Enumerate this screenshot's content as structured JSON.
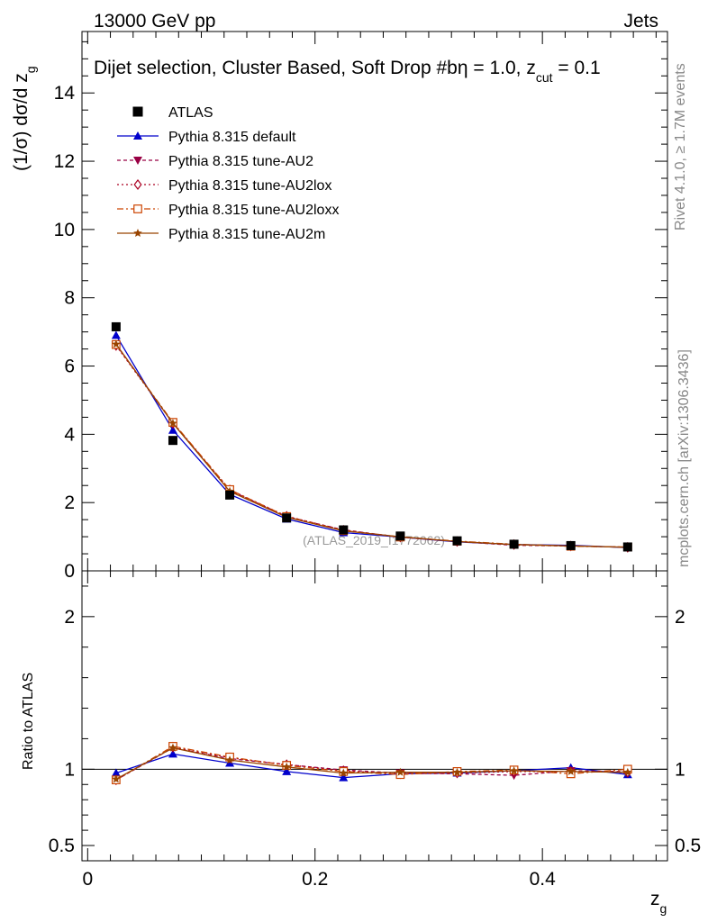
{
  "header": {
    "energy_label": "13000 GeV pp",
    "category_label": "Jets"
  },
  "side_text": {
    "rivet": "Rivet 4.1.0, ≥ 1.7M events",
    "mcplots": "mcplots.cern.ch [arXiv:1306.3436]"
  },
  "chart_data": {
    "type": "line",
    "title": "Dijet selection, Cluster Based, Soft Drop #b",
    "title_eta": "η = 1.0, z",
    "title_cut": "cut",
    "title_end": " = 0.1",
    "watermark": "(ATLAS_2019_I1772062)",
    "xlabel": "z",
    "xlabel_sub": "g",
    "ylabel": "(1/σ) dσ/d z",
    "ylabel_sub": "g",
    "ratio_ylabel": "Ratio to ATLAS",
    "xlim": [
      -0.005,
      0.51
    ],
    "ylim": [
      0,
      15.8
    ],
    "ratio_ylim": [
      0.4,
      2.3
    ],
    "x": [
      0.025,
      0.075,
      0.125,
      0.175,
      0.225,
      0.275,
      0.325,
      0.375,
      0.425,
      0.475
    ],
    "x_ticks": [
      {
        "v": 0,
        "label": "0"
      },
      {
        "v": 0.2,
        "label": "0.2"
      },
      {
        "v": 0.4,
        "label": "0.4"
      }
    ],
    "y_ticks": [
      {
        "v": 0,
        "label": "0"
      },
      {
        "v": 2,
        "label": "2"
      },
      {
        "v": 4,
        "label": "4"
      },
      {
        "v": 6,
        "label": "6"
      },
      {
        "v": 8,
        "label": "8"
      },
      {
        "v": 10,
        "label": "10"
      },
      {
        "v": 12,
        "label": "12"
      },
      {
        "v": 14,
        "label": "14"
      }
    ],
    "ratio_ticks": [
      {
        "v": 0.5,
        "label": "0.5"
      },
      {
        "v": 1,
        "label": "1"
      },
      {
        "v": 2,
        "label": "2"
      }
    ],
    "data": {
      "name": "ATLAS",
      "values": [
        7.15,
        3.82,
        2.22,
        1.55,
        1.2,
        1.02,
        0.88,
        0.78,
        0.74,
        0.7
      ]
    },
    "series": [
      {
        "name": "Pythia 8.315 default",
        "color": "#0000cc",
        "marker": "triangle-up",
        "dash": "",
        "values": [
          6.9,
          4.12,
          2.24,
          1.52,
          1.12,
          0.99,
          0.85,
          0.77,
          0.75,
          0.68
        ],
        "ratio": [
          0.975,
          1.1,
          1.04,
          0.985,
          0.945,
          0.97,
          0.975,
          0.99,
          1.01,
          0.965
        ]
      },
      {
        "name": "Pythia 8.315 tune-AU2",
        "color": "#990044",
        "marker": "triangle-down",
        "dash": "4,3",
        "values": [
          6.62,
          4.33,
          2.36,
          1.59,
          1.2,
          0.99,
          0.86,
          0.75,
          0.73,
          0.69
        ],
        "ratio": [
          0.93,
          1.14,
          1.07,
          1.03,
          0.995,
          0.975,
          0.97,
          0.96,
          0.99,
          0.985
        ]
      },
      {
        "name": "Pythia 8.315 tune-AU2lox",
        "color": "#aa0022",
        "marker": "diamond-open",
        "dash": "2,3",
        "values": [
          6.6,
          4.32,
          2.37,
          1.6,
          1.19,
          0.99,
          0.86,
          0.77,
          0.73,
          0.69
        ],
        "ratio": [
          0.93,
          1.145,
          1.075,
          1.03,
          0.99,
          0.97,
          0.975,
          0.985,
          0.985,
          0.98
        ]
      },
      {
        "name": "Pythia 8.315 tune-AU2loxx",
        "color": "#cc4400",
        "marker": "square-open",
        "dash": "7,3,2,3",
        "values": [
          6.63,
          4.35,
          2.38,
          1.59,
          1.18,
          0.99,
          0.87,
          0.78,
          0.72,
          0.7
        ],
        "ratio": [
          0.93,
          1.15,
          1.08,
          1.025,
          0.985,
          0.965,
          0.985,
          0.995,
          0.97,
          1.0
        ]
      },
      {
        "name": "Pythia 8.315 tune-AU2m",
        "color": "#994400",
        "marker": "star",
        "dash": "",
        "values": [
          6.64,
          4.32,
          2.33,
          1.57,
          1.17,
          1.0,
          0.86,
          0.77,
          0.73,
          0.69
        ],
        "ratio": [
          0.935,
          1.14,
          1.06,
          1.015,
          0.975,
          0.98,
          0.98,
          0.99,
          0.985,
          0.98
        ]
      }
    ]
  }
}
